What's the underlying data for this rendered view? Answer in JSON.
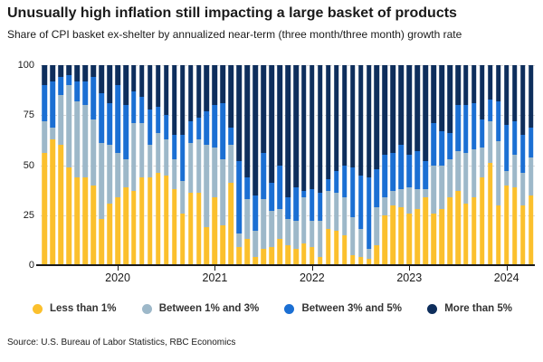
{
  "chart_data": {
    "type": "bar",
    "stacked": true,
    "title": "Unusually high inflation still impacting a large basket of products",
    "subtitle": "Share of CPI basket ex-shelter by annualized near-term (three month/three month) growth rate",
    "source": "Source: U.S. Bureau of Labor Statistics, RBC Economics",
    "ylabel": "",
    "xlabel": "",
    "ylim": [
      0,
      100
    ],
    "yticks": [
      0,
      25,
      50,
      75,
      100
    ],
    "grid": "horizontal dashed at 25/50/75/100",
    "legend_position": "bottom",
    "categories": [
      "2019-04",
      "2019-05",
      "2019-06",
      "2019-07",
      "2019-08",
      "2019-09",
      "2019-10",
      "2019-11",
      "2019-12",
      "2020-01",
      "2020-02",
      "2020-03",
      "2020-04",
      "2020-05",
      "2020-06",
      "2020-07",
      "2020-08",
      "2020-09",
      "2020-10",
      "2020-11",
      "2020-12",
      "2021-01",
      "2021-02",
      "2021-03",
      "2021-04",
      "2021-05",
      "2021-06",
      "2021-07",
      "2021-08",
      "2021-09",
      "2021-10",
      "2021-11",
      "2021-12",
      "2022-01",
      "2022-02",
      "2022-03",
      "2022-04",
      "2022-05",
      "2022-06",
      "2022-07",
      "2022-08",
      "2022-09",
      "2022-10",
      "2022-11",
      "2022-12",
      "2023-01",
      "2023-02",
      "2023-03",
      "2023-04",
      "2023-05",
      "2023-06",
      "2023-07",
      "2023-08",
      "2023-09",
      "2023-10",
      "2023-11",
      "2023-12",
      "2024-01",
      "2024-02",
      "2024-03",
      "2024-04"
    ],
    "xticks": [
      {
        "label": "2020",
        "index": 9
      },
      {
        "label": "2021",
        "index": 21
      },
      {
        "label": "2022",
        "index": 33
      },
      {
        "label": "2023",
        "index": 45
      },
      {
        "label": "2024",
        "index": 57
      }
    ],
    "series": [
      {
        "name": "Less than 1%",
        "color": "#FBC02D",
        "values": [
          56,
          63,
          60,
          49,
          44,
          44,
          40,
          23,
          31,
          34,
          39,
          37,
          44,
          44,
          46,
          45,
          38,
          26,
          36,
          36,
          19,
          34,
          20,
          41,
          9,
          13,
          4,
          8,
          9,
          13,
          10,
          8,
          11,
          9,
          4,
          18,
          17,
          15,
          5,
          4,
          3,
          10,
          25,
          30,
          29,
          26,
          28,
          34,
          26,
          28,
          34,
          37,
          31,
          34,
          44,
          51,
          30,
          40,
          39,
          30,
          35
        ]
      },
      {
        "name": "Between 1% and 3%",
        "color": "#9DB8C9",
        "values": [
          16,
          6,
          25,
          41,
          38,
          36,
          33,
          38,
          29,
          22,
          14,
          34,
          27,
          16,
          20,
          18,
          15,
          16,
          25,
          27,
          41,
          25,
          33,
          19,
          7,
          20,
          13,
          25,
          18,
          15,
          13,
          14,
          23,
          13,
          18,
          19,
          19,
          19,
          19,
          14,
          5,
          19,
          9,
          7,
          9,
          13,
          10,
          4,
          24,
          22,
          19,
          20,
          25,
          24,
          15,
          21,
          32,
          7,
          16,
          16,
          19
        ]
      },
      {
        "name": "Between 3% and 5%",
        "color": "#1B6FD3",
        "values": [
          18,
          23,
          9,
          5,
          10,
          12,
          21,
          25,
          21,
          34,
          27,
          16,
          13,
          18,
          13,
          12,
          12,
          23,
          11,
          11,
          17,
          21,
          28,
          9,
          36,
          11,
          18,
          23,
          14,
          22,
          11,
          17,
          3,
          16,
          14,
          6,
          11,
          16,
          25,
          27,
          36,
          19,
          21,
          19,
          22,
          16,
          19,
          14,
          21,
          17,
          13,
          23,
          24,
          23,
          14,
          11,
          20,
          23,
          17,
          19,
          15
        ]
      },
      {
        "name": "More than 5%",
        "color": "#0E2E5C",
        "values": [
          10,
          8,
          6,
          5,
          8,
          8,
          6,
          14,
          19,
          10,
          20,
          13,
          16,
          22,
          21,
          25,
          35,
          35,
          28,
          26,
          23,
          20,
          19,
          31,
          48,
          56,
          65,
          44,
          59,
          50,
          66,
          61,
          63,
          62,
          64,
          57,
          53,
          50,
          51,
          55,
          56,
          52,
          45,
          44,
          40,
          45,
          43,
          48,
          29,
          33,
          34,
          20,
          20,
          19,
          27,
          17,
          18,
          30,
          28,
          35,
          31
        ]
      }
    ]
  },
  "colors": {
    "axis": "#1a1a1a",
    "gridline": "#d9d9d9",
    "text": "#1a1a1a",
    "legend_text": "#333333"
  }
}
